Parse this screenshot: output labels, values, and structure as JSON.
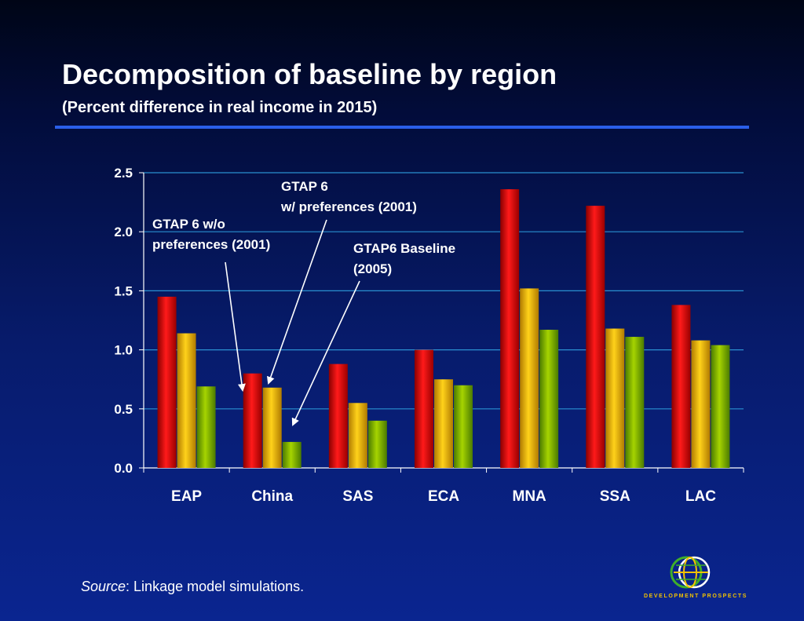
{
  "title": "Decomposition of baseline by region",
  "subtitle": "(Percent difference in real income in 2015)",
  "source": {
    "label": "Source",
    "text": ": Linkage model simulations."
  },
  "logo": {
    "text": "DEVELOPMENT PROSPECTS",
    "icon": "globe-icon"
  },
  "colors": {
    "series1": "#e60000",
    "series2": "#f2b800",
    "series3": "#7fb800",
    "grid": "#2a8fd0",
    "accent_rule": "#2a5ee8"
  },
  "chart_data": {
    "type": "bar",
    "categories": [
      "EAP",
      "China",
      "SAS",
      "ECA",
      "MNA",
      "SSA",
      "LAC"
    ],
    "series": [
      {
        "values": [
          1.45,
          0.8,
          0.88,
          1.0,
          2.36,
          2.22,
          1.38
        ]
      },
      {
        "values": [
          1.14,
          0.68,
          0.55,
          0.75,
          1.52,
          1.18,
          1.08
        ]
      },
      {
        "values": [
          0.69,
          0.22,
          0.4,
          0.7,
          1.17,
          1.11,
          1.04
        ]
      }
    ],
    "ylim": [
      0,
      2.5
    ],
    "yticks": [
      "0.0",
      "0.5",
      "1.0",
      "1.5",
      "2.0",
      "2.5"
    ],
    "grid": true,
    "annotations": [
      {
        "lines": [
          "GTAP 6 w/o",
          "preferences (2001)"
        ],
        "target_category": "China",
        "target_series": 0
      },
      {
        "lines": [
          "GTAP 6",
          "w/ preferences (2001)"
        ],
        "target_category": "China",
        "target_series": 1
      },
      {
        "lines": [
          "GTAP6 Baseline",
          "(2005)"
        ],
        "target_category": "China",
        "target_series": 2
      }
    ]
  }
}
